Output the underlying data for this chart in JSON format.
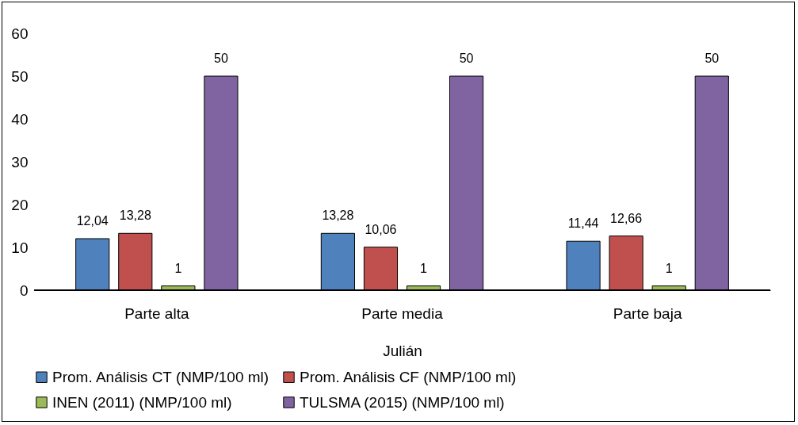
{
  "chart_data": {
    "type": "bar",
    "xlabel": "Julián",
    "categories": [
      "Parte alta",
      "Parte media",
      "Parte baja"
    ],
    "series": [
      {
        "name": "Prom. Análisis CT (NMP/100 ml)",
        "color": "#4f81bd",
        "values": [
          12.04,
          13.28,
          11.44
        ],
        "value_labels": [
          "12,04",
          "13,28",
          "11,44"
        ]
      },
      {
        "name": "Prom. Análisis CF (NMP/100 ml)",
        "color": "#c0504d",
        "values": [
          13.28,
          10.06,
          12.66
        ],
        "value_labels": [
          "13,28",
          "10,06",
          "12,66"
        ]
      },
      {
        "name": "INEN (2011) (NMP/100 ml)",
        "color": "#9bbb59",
        "values": [
          1,
          1,
          1
        ],
        "value_labels": [
          "1",
          "1",
          "1"
        ]
      },
      {
        "name": "TULSMA (2015) (NMP/100 ml)",
        "color": "#8064a2",
        "values": [
          50,
          50,
          50
        ],
        "value_labels": [
          "50",
          "50",
          "50"
        ]
      }
    ],
    "ylim": [
      0,
      60
    ],
    "yticks": [
      0,
      10,
      20,
      30,
      40,
      50,
      60
    ],
    "grid": false,
    "legend": "bottom"
  }
}
